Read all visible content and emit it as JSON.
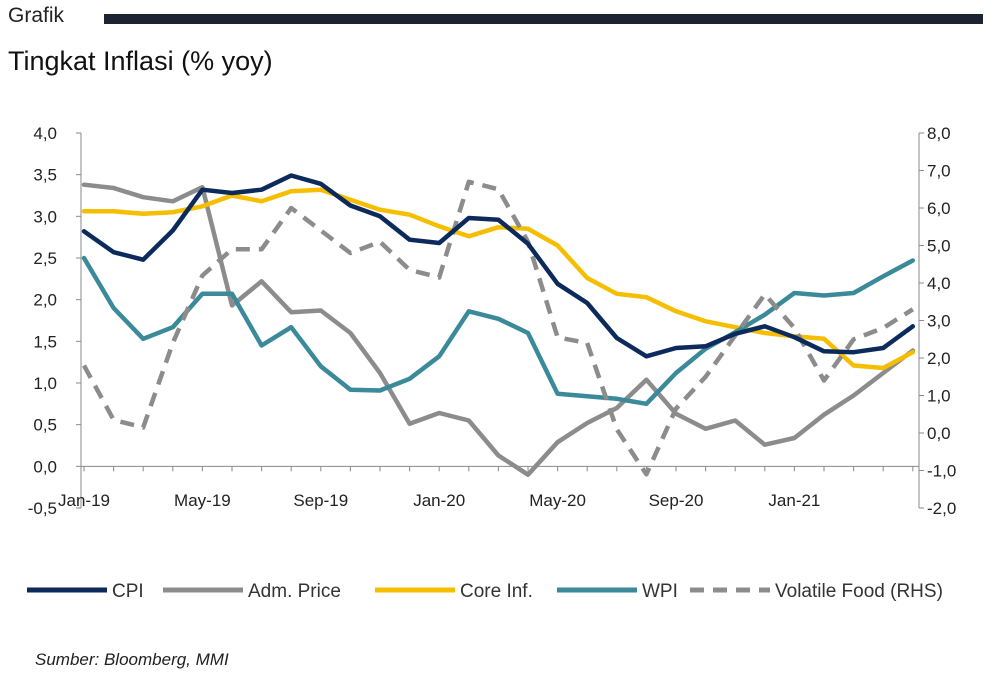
{
  "header": {
    "section_label": "Grafik",
    "title": "Tingkat Inflasi (% yoy)"
  },
  "source": "Sumber: Bloomberg, MMI",
  "chart_data": {
    "type": "line",
    "title": "Tingkat Inflasi (% yoy)",
    "x": [
      "2019-01",
      "2019-02",
      "2019-03",
      "2019-04",
      "2019-05",
      "2019-06",
      "2019-07",
      "2019-08",
      "2019-09",
      "2019-10",
      "2019-11",
      "2019-12",
      "2020-01",
      "2020-02",
      "2020-03",
      "2020-04",
      "2020-05",
      "2020-06",
      "2020-07",
      "2020-08",
      "2020-09",
      "2020-10",
      "2020-11",
      "2020-12",
      "2021-01",
      "2021-02",
      "2021-03",
      "2021-04",
      "2021-05"
    ],
    "x_tick_labels": [
      "Jan-19",
      "May-19",
      "Sep-19",
      "Jan-20",
      "May-20",
      "Sep-20",
      "Jan-21"
    ],
    "y_left": {
      "min": -0.5,
      "max": 4.0,
      "step": 0.5,
      "tick_labels": [
        "-0,5",
        "0,0",
        "0,5",
        "1,0",
        "1,5",
        "2,0",
        "2,5",
        "3,0",
        "3,5",
        "4,0"
      ]
    },
    "y_right": {
      "min": -2.0,
      "max": 8.0,
      "step": 1.0,
      "tick_labels": [
        "-2,0",
        "-1,0",
        "0,0",
        "1,0",
        "2,0",
        "3,0",
        "4,0",
        "5,0",
        "6,0",
        "7,0",
        "8,0"
      ]
    },
    "grid": false,
    "legend_position": "bottom",
    "series": [
      {
        "name": "CPI",
        "axis": "left",
        "color": "#0d2a5c",
        "dash": false,
        "values": [
          2.82,
          2.57,
          2.48,
          2.83,
          3.32,
          3.28,
          3.32,
          3.49,
          3.39,
          3.13,
          3.0,
          2.72,
          2.68,
          2.98,
          2.96,
          2.67,
          2.19,
          1.96,
          1.54,
          1.32,
          1.42,
          1.44,
          1.59,
          1.68,
          1.55,
          1.38,
          1.37,
          1.42,
          1.68
        ]
      },
      {
        "name": "Adm. Price",
        "axis": "left",
        "color": "#8c8c8c",
        "dash": false,
        "values": [
          3.38,
          3.34,
          3.23,
          3.18,
          3.35,
          1.93,
          2.22,
          1.85,
          1.87,
          1.6,
          1.12,
          0.51,
          0.64,
          0.55,
          0.13,
          -0.1,
          0.29,
          0.52,
          0.7,
          1.04,
          0.63,
          0.45,
          0.55,
          0.26,
          0.34,
          0.62,
          0.85,
          1.12,
          1.39
        ]
      },
      {
        "name": "Core Inf.",
        "axis": "left",
        "color": "#f5be00",
        "dash": false,
        "values": [
          3.06,
          3.06,
          3.03,
          3.05,
          3.12,
          3.25,
          3.18,
          3.3,
          3.32,
          3.2,
          3.08,
          3.02,
          2.88,
          2.76,
          2.87,
          2.85,
          2.65,
          2.26,
          2.07,
          2.03,
          1.86,
          1.74,
          1.67,
          1.6,
          1.56,
          1.53,
          1.21,
          1.18,
          1.37
        ]
      },
      {
        "name": "WPI",
        "axis": "left",
        "color": "#3a8a9a",
        "dash": false,
        "values": [
          2.5,
          1.9,
          1.53,
          1.67,
          2.07,
          2.07,
          1.45,
          1.67,
          1.2,
          0.92,
          0.91,
          1.05,
          1.32,
          1.86,
          1.77,
          1.6,
          0.87,
          0.84,
          0.81,
          0.75,
          1.12,
          1.41,
          1.61,
          1.82,
          2.08,
          2.05,
          2.08,
          2.28,
          2.47
        ]
      },
      {
        "name": "Volatile Food (RHS)",
        "axis": "right",
        "color": "#8c8c8c",
        "dash": true,
        "values": [
          1.8,
          0.35,
          0.15,
          2.4,
          4.2,
          4.9,
          4.9,
          6.0,
          5.4,
          4.8,
          5.1,
          4.35,
          4.15,
          6.7,
          6.5,
          5.1,
          2.55,
          2.4,
          0.1,
          -1.1,
          0.65,
          1.5,
          2.6,
          3.7,
          2.8,
          1.4,
          2.5,
          2.8,
          3.3
        ]
      }
    ]
  }
}
